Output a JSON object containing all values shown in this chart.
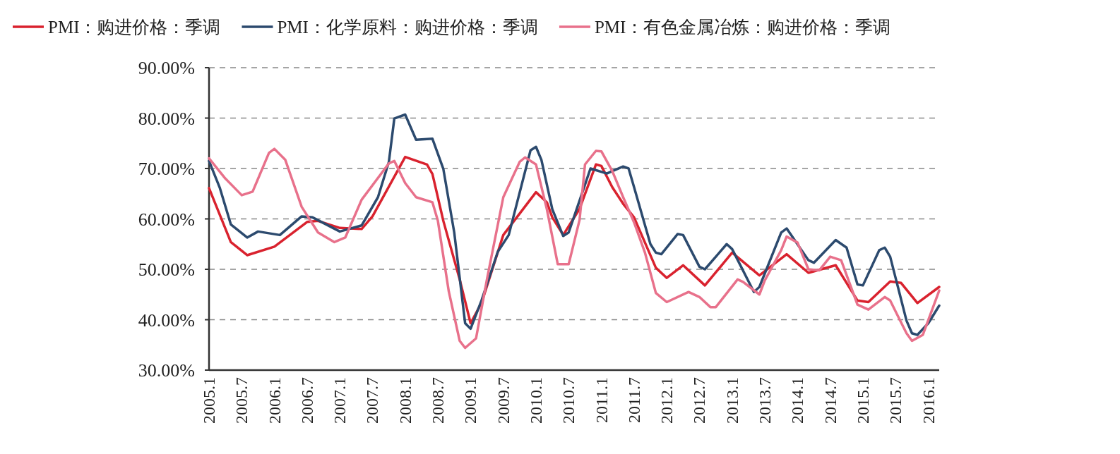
{
  "chart_data": {
    "type": "line",
    "legend": "top",
    "grid": "y",
    "line_style": "solid",
    "marker": "none",
    "xlim": [
      "2005-01",
      "2016-03"
    ],
    "xticks": [
      {
        "value": "2005-01",
        "label": "2005.1"
      },
      {
        "value": "2005-07",
        "label": "2005.7"
      },
      {
        "value": "2006-01",
        "label": "2006.1"
      },
      {
        "value": "2006-07",
        "label": "2006.7"
      },
      {
        "value": "2007-01",
        "label": "2007.1"
      },
      {
        "value": "2007-07",
        "label": "2007.7"
      },
      {
        "value": "2008-01",
        "label": "2008.1"
      },
      {
        "value": "2008-07",
        "label": "2008.7"
      },
      {
        "value": "2009-01",
        "label": "2009.1"
      },
      {
        "value": "2009-07",
        "label": "2009.7"
      },
      {
        "value": "2010-01",
        "label": "2010.1"
      },
      {
        "value": "2010-07",
        "label": "2010.7"
      },
      {
        "value": "2011-01",
        "label": "2011.1"
      },
      {
        "value": "2011-07",
        "label": "2011.7"
      },
      {
        "value": "2012-01",
        "label": "2012.1"
      },
      {
        "value": "2012-07",
        "label": "2012.7"
      },
      {
        "value": "2013-01",
        "label": "2013.1"
      },
      {
        "value": "2013-07",
        "label": "2013.7"
      },
      {
        "value": "2014-01",
        "label": "2014.1"
      },
      {
        "value": "2014-07",
        "label": "2014.7"
      },
      {
        "value": "2015-01",
        "label": "2015.1"
      },
      {
        "value": "2015-07",
        "label": "2015.7"
      },
      {
        "value": "2016-01",
        "label": "2016.1"
      }
    ],
    "ylim": [
      30,
      90
    ],
    "yticks": [
      {
        "value": 30,
        "label": "30.00%"
      },
      {
        "value": 40,
        "label": "40.00%"
      },
      {
        "value": 50,
        "label": "50.00%"
      },
      {
        "value": 60,
        "label": "60.00%"
      },
      {
        "value": 70,
        "label": "70.00%"
      },
      {
        "value": 80,
        "label": "80.00%"
      },
      {
        "value": 90,
        "label": "90.00%"
      }
    ],
    "series": [
      {
        "name": "PMI：购进价格：季调",
        "color": "#d9222e",
        "x": [
          "2005-01",
          "2005-05",
          "2005-08",
          "2006-01",
          "2006-07",
          "2006-09",
          "2007-01",
          "2007-05",
          "2007-07",
          "2008-01",
          "2008-05",
          "2008-06",
          "2008-08",
          "2008-11",
          "2009-01",
          "2009-03",
          "2009-07",
          "2010-01",
          "2010-03",
          "2010-04",
          "2010-06",
          "2010-09",
          "2010-12",
          "2011-01",
          "2011-03",
          "2011-05",
          "2011-07",
          "2011-11",
          "2012-01",
          "2012-04",
          "2012-08",
          "2013-01",
          "2013-06",
          "2013-11",
          "2014-03",
          "2014-08",
          "2014-12",
          "2015-02",
          "2015-06",
          "2015-08",
          "2015-11",
          "2016-03"
        ],
        "values": [
          66.1,
          55.4,
          52.8,
          54.5,
          59.4,
          59.6,
          58.2,
          58.0,
          60.5,
          72.3,
          70.8,
          68.9,
          59.6,
          48,
          39.3,
          43.3,
          56.8,
          65.3,
          63.3,
          60.3,
          56.8,
          62,
          70.8,
          70.5,
          66.3,
          63,
          60.3,
          50.3,
          48.3,
          50.8,
          46.8,
          53.3,
          48.8,
          53,
          49.3,
          50.8,
          43.8,
          43.5,
          47.6,
          47.3,
          43.3,
          46.5
        ]
      },
      {
        "name": "PMI：化学原料：购进价格：季调",
        "color": "#2c4a6e",
        "x": [
          "2005-01",
          "2005-03",
          "2005-05",
          "2005-08",
          "2005-10",
          "2006-02",
          "2006-06",
          "2006-08",
          "2007-01",
          "2007-05",
          "2007-08",
          "2007-10",
          "2007-11",
          "2008-01",
          "2008-03",
          "2008-06",
          "2008-08",
          "2008-10",
          "2008-12",
          "2009-01",
          "2009-03",
          "2009-06",
          "2009-08",
          "2009-12",
          "2010-01",
          "2010-02",
          "2010-04",
          "2010-06",
          "2010-07",
          "2010-10",
          "2010-11",
          "2011-02",
          "2011-05",
          "2011-06",
          "2011-07",
          "2011-10",
          "2011-11",
          "2011-12",
          "2012-03",
          "2012-04",
          "2012-07",
          "2012-08",
          "2012-12",
          "2013-01",
          "2013-05",
          "2013-06",
          "2013-10",
          "2013-11",
          "2014-03",
          "2014-04",
          "2014-08",
          "2014-10",
          "2014-12",
          "2015-01",
          "2015-04",
          "2015-05",
          "2015-06",
          "2015-09",
          "2015-10",
          "2015-11",
          "2016-01",
          "2016-03"
        ],
        "values": [
          71.5,
          66.1,
          58.9,
          56.3,
          57.5,
          56.8,
          60.5,
          60.3,
          57.5,
          58.7,
          64.3,
          71.3,
          79.9,
          80.7,
          75.7,
          75.9,
          69.9,
          57.3,
          39.3,
          38.2,
          43.8,
          53.5,
          56.8,
          73.6,
          74.3,
          71.7,
          61.9,
          56.6,
          57.3,
          66.8,
          70,
          69,
          70.4,
          70,
          66.3,
          55,
          53.3,
          53,
          57,
          56.8,
          50.5,
          50,
          55,
          54,
          45.5,
          46.5,
          57.3,
          58.1,
          51.8,
          51.3,
          55.8,
          54.3,
          47,
          46.8,
          53.8,
          54.3,
          52.5,
          39.8,
          37.3,
          37,
          39.3,
          42.8
        ]
      },
      {
        "name": "PMI：有色金属冶炼：购进价格：季调",
        "color": "#e8718b",
        "x": [
          "2005-01",
          "2005-04",
          "2005-07",
          "2005-09",
          "2005-12",
          "2006-01",
          "2006-03",
          "2006-06",
          "2006-09",
          "2006-12",
          "2007-02",
          "2007-05",
          "2007-10",
          "2007-11",
          "2008-01",
          "2008-03",
          "2008-06",
          "2008-07",
          "2008-09",
          "2008-11",
          "2008-12",
          "2009-02",
          "2009-04",
          "2009-07",
          "2009-10",
          "2009-11",
          "2010-01",
          "2010-03",
          "2010-05",
          "2010-07",
          "2010-09",
          "2010-10",
          "2010-12",
          "2011-01",
          "2011-03",
          "2011-05",
          "2011-07",
          "2011-09",
          "2011-11",
          "2012-01",
          "2012-05",
          "2012-07",
          "2012-09",
          "2012-10",
          "2013-02",
          "2013-03",
          "2013-06",
          "2013-07",
          "2013-10",
          "2013-11",
          "2014-01",
          "2014-03",
          "2014-05",
          "2014-07",
          "2014-09",
          "2014-12",
          "2015-02",
          "2015-05",
          "2015-06",
          "2015-09",
          "2015-10",
          "2015-12",
          "2016-03"
        ],
        "values": [
          72,
          68,
          64.7,
          65.4,
          73.1,
          73.9,
          71.7,
          62.4,
          57.3,
          55.4,
          56.3,
          63.8,
          71,
          71.5,
          67.1,
          64.3,
          63.3,
          59.6,
          45.6,
          35.8,
          34.4,
          36.3,
          48,
          64.3,
          71.3,
          72.2,
          70.8,
          61.9,
          51,
          51,
          59.8,
          70.8,
          73.5,
          73.4,
          69.5,
          64.3,
          59.3,
          53.3,
          45.3,
          43.5,
          45.5,
          44.5,
          42.5,
          42.5,
          48,
          47.5,
          45,
          47.8,
          53.8,
          56.5,
          55.3,
          50,
          49.8,
          52.5,
          51.8,
          43,
          42,
          44.5,
          43.8,
          37.3,
          35.8,
          37,
          45.8
        ]
      }
    ]
  }
}
